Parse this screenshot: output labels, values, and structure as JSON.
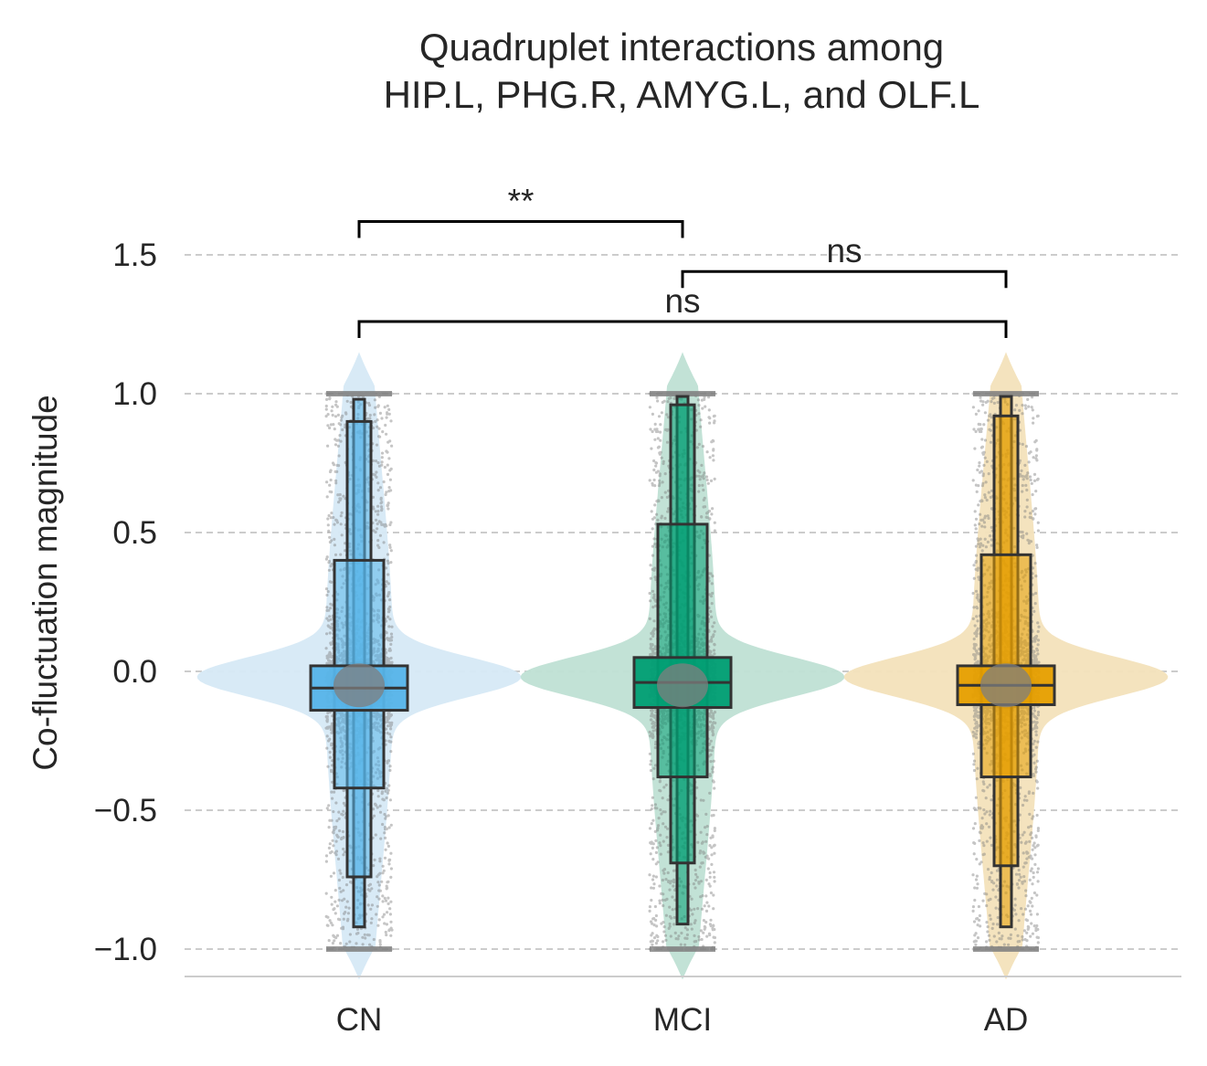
{
  "chart_data": {
    "type": "violin",
    "title_lines": [
      "Quadruplet interactions among",
      "HIP.L, PHG.R, AMYG.L, and OLF.L"
    ],
    "xlabel": "",
    "ylabel": "Co-fluctuation magnitude",
    "ylim": [
      -1.1,
      1.6
    ],
    "yticks": [
      -1.0,
      -0.5,
      0.0,
      0.5,
      1.0,
      1.5
    ],
    "ytick_labels": [
      "−1.0",
      "−0.5",
      "0.0",
      "0.5",
      "1.0",
      "1.5"
    ],
    "grid": "horizontal-dashed",
    "categories": [
      "CN",
      "MCI",
      "AD"
    ],
    "series": [
      {
        "category": "CN",
        "color": "#56B4E9",
        "violin_color": "#D6E9F6",
        "boxen_levels": [
          [
            -0.14,
            0.02
          ],
          [
            -0.42,
            0.4
          ],
          [
            -0.74,
            0.9
          ],
          [
            -0.92,
            0.98
          ]
        ]
      },
      {
        "category": "MCI",
        "color": "#009E73",
        "violin_color": "#BFE0D4",
        "boxen_levels": [
          [
            -0.13,
            0.05
          ],
          [
            -0.38,
            0.53
          ],
          [
            -0.69,
            0.96
          ],
          [
            -0.91,
            0.99
          ]
        ]
      },
      {
        "category": "AD",
        "color": "#E69F00",
        "violin_color": "#F3E1BB",
        "boxen_levels": [
          [
            -0.12,
            0.02
          ],
          [
            -0.38,
            0.42
          ],
          [
            -0.7,
            0.92
          ],
          [
            -0.92,
            0.99
          ]
        ]
      }
    ],
    "comparisons": [
      {
        "pair": [
          "CN",
          "MCI"
        ],
        "label": "**",
        "y": 1.62
      },
      {
        "pair": [
          "MCI",
          "AD"
        ],
        "label": "ns",
        "y": 1.44
      },
      {
        "pair": [
          "CN",
          "AD"
        ],
        "label": "ns",
        "y": 1.26
      }
    ]
  }
}
